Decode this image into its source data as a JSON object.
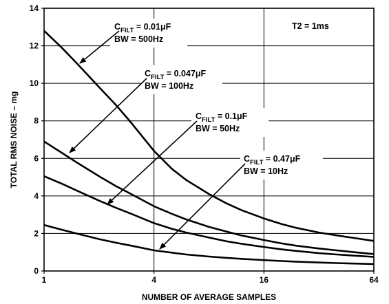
{
  "chart_data": {
    "type": "line",
    "xlabel": "NUMBER OF AVERAGE SAMPLES",
    "ylabel": "TOTAL RMS NOISE – mg",
    "xscale": "log2",
    "xlim": [
      1,
      64
    ],
    "ylim": [
      0,
      14
    ],
    "x_ticks": [
      "1",
      "4",
      "16",
      "64"
    ],
    "y_ticks": [
      "0",
      "2",
      "4",
      "6",
      "8",
      "10",
      "12",
      "14"
    ],
    "grid": true,
    "annotations": [
      {
        "key": "t2",
        "text": "T2 = 1ms"
      },
      {
        "key": "c1",
        "cfilt": "= 0.01μF",
        "bw": "BW = 500Hz"
      },
      {
        "key": "c2",
        "cfilt": "= 0.047μF",
        "bw": "BW = 100Hz"
      },
      {
        "key": "c3",
        "cfilt": "= 0.1μF",
        "bw": "BW = 50Hz"
      },
      {
        "key": "c4",
        "cfilt": "= 0.47μF",
        "bw": "BW = 10Hz"
      }
    ],
    "cfilt_prefix": "C",
    "cfilt_sub": "FILT",
    "series": [
      {
        "x": [
          1,
          1.25,
          1.5,
          2,
          2.5,
          3,
          4,
          5,
          6,
          8,
          10,
          12,
          16,
          20,
          24,
          32,
          40,
          48,
          64
        ],
        "y": [
          12.8,
          11.9,
          11.1,
          9.8,
          8.8,
          7.9,
          6.4,
          5.45,
          4.85,
          4.1,
          3.6,
          3.25,
          2.8,
          2.5,
          2.3,
          2.05,
          1.9,
          1.78,
          1.6
        ]
      },
      {
        "x": [
          1,
          1.25,
          1.5,
          2,
          2.5,
          3,
          4,
          5,
          6,
          8,
          10,
          12,
          16,
          20,
          24,
          32,
          40,
          48,
          64
        ],
        "y": [
          6.9,
          6.3,
          5.8,
          5.05,
          4.5,
          4.1,
          3.45,
          3.05,
          2.75,
          2.35,
          2.1,
          1.9,
          1.65,
          1.47,
          1.35,
          1.2,
          1.1,
          1.02,
          0.9
        ]
      },
      {
        "x": [
          1,
          1.25,
          1.5,
          2,
          2.5,
          3,
          4,
          5,
          6,
          8,
          10,
          12,
          16,
          20,
          24,
          32,
          40,
          48,
          64
        ],
        "y": [
          5.05,
          4.65,
          4.3,
          3.75,
          3.35,
          3.05,
          2.55,
          2.25,
          2.05,
          1.78,
          1.58,
          1.45,
          1.28,
          1.15,
          1.07,
          0.95,
          0.88,
          0.83,
          0.75
        ]
      },
      {
        "x": [
          1,
          1.25,
          1.5,
          2,
          2.5,
          3,
          4,
          5,
          6,
          8,
          10,
          12,
          16,
          20,
          24,
          32,
          40,
          48,
          64
        ],
        "y": [
          2.45,
          2.2,
          2.0,
          1.7,
          1.5,
          1.35,
          1.1,
          0.98,
          0.88,
          0.77,
          0.7,
          0.65,
          0.58,
          0.53,
          0.5,
          0.45,
          0.42,
          0.4,
          0.37
        ]
      }
    ]
  }
}
